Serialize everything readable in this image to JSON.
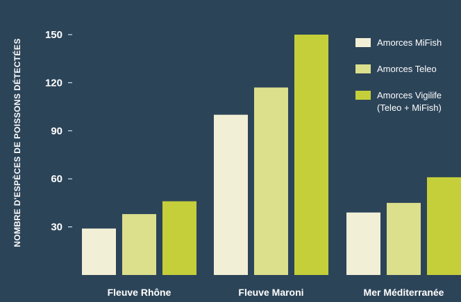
{
  "chart_data": {
    "type": "bar",
    "ylabel": "NOMBRE D'ESPÈCES DE POISSONS DÉTECTÉES",
    "categories": [
      "Fleuve Rhône",
      "Fleuve Maroni",
      "Mer Méditerranée"
    ],
    "yticks": [
      30,
      60,
      90,
      120,
      150
    ],
    "ylim": [
      0,
      150
    ],
    "grid": false,
    "legend_position": "top-right",
    "series": [
      {
        "name": "Amorces MiFish",
        "values": [
          29,
          100,
          39
        ],
        "color": "#f1efd6"
      },
      {
        "name": "Amorces Teleo",
        "values": [
          38,
          117,
          45
        ],
        "color": "#dcdf8c"
      },
      {
        "name": "Amorces Vigilife (Teleo + MiFish)",
        "legend_lines": [
          "Amorces Vigilife",
          "(Teleo + MiFish)"
        ],
        "values": [
          46,
          150,
          61
        ],
        "color": "#c5cf3a"
      }
    ],
    "colors": {
      "background": "#2c4458",
      "text": "#ffffff"
    }
  }
}
